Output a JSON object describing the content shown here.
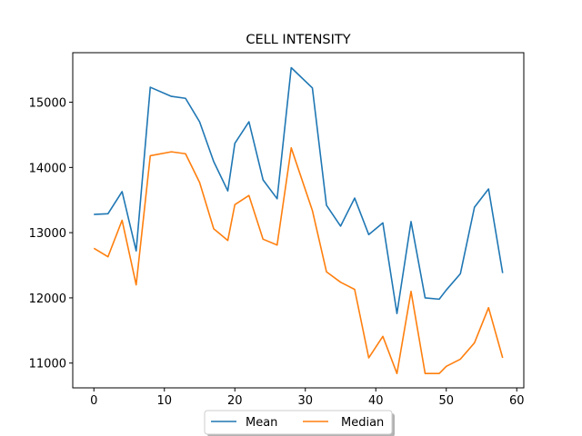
{
  "chart_data": {
    "type": "line",
    "title": "CELL INTENSITY",
    "xlabel": "",
    "ylabel": "",
    "xlim": [
      -3,
      61
    ],
    "ylim": [
      10620,
      15760
    ],
    "x_ticks": [
      0,
      10,
      20,
      30,
      40,
      50,
      60
    ],
    "y_ticks": [
      11000,
      12000,
      13000,
      14000,
      15000
    ],
    "grid": false,
    "legend_position": "bottom-center",
    "x": [
      0,
      2,
      4,
      6,
      8,
      11,
      13,
      15,
      17,
      19,
      20,
      22,
      24,
      26,
      28,
      31,
      33,
      35,
      37,
      39,
      41,
      43,
      45,
      47,
      49,
      50,
      52,
      54,
      56,
      58
    ],
    "series": [
      {
        "name": "Mean",
        "color": "#1f77b4",
        "values": [
          13280,
          13290,
          13630,
          12720,
          15230,
          15090,
          15060,
          14700,
          14090,
          13640,
          14370,
          14700,
          13810,
          13520,
          15530,
          15220,
          13420,
          13100,
          13530,
          12970,
          13150,
          11760,
          13170,
          12000,
          11980,
          12120,
          12370,
          13390,
          13670,
          12380
        ]
      },
      {
        "name": "Median",
        "color": "#ff7f0e",
        "values": [
          12760,
          12630,
          13190,
          12200,
          14180,
          14240,
          14210,
          13770,
          13060,
          12880,
          13430,
          13570,
          12900,
          12810,
          14300,
          13340,
          12400,
          12240,
          12130,
          11080,
          11410,
          10840,
          12100,
          10840,
          10840,
          10950,
          11060,
          11310,
          11850,
          11080
        ]
      }
    ]
  }
}
